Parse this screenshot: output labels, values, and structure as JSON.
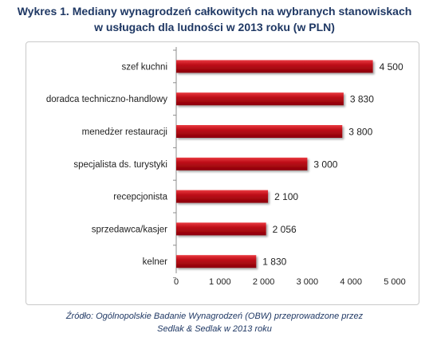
{
  "title_line1": "Wykres 1. Mediany wynagrodzeń całkowitych na wybranych stanowiskach",
  "title_line2": "w usługach dla ludności w 2013 roku (w PLN)",
  "source_line1": "Źródło: Ogólnopolskie Badanie Wynagrodzeń (OBW) przeprowadzone przez",
  "source_line2": "Sedlak & Sedlak w 2013 roku",
  "colors": {
    "bar": "#c0101a",
    "bar_light": "#ea3a40",
    "bar_dark": "#8a0008",
    "title": "#1f3864"
  },
  "chart_data": {
    "type": "bar",
    "orientation": "horizontal",
    "categories": [
      "szef kuchni",
      "doradca techniczno-handlowy",
      "menedżer restauracji",
      "specjalista ds. turystyki",
      "recepcjonista",
      "sprzedawca/kasjer",
      "kelner"
    ],
    "values": [
      4500,
      3830,
      3800,
      3000,
      2100,
      2056,
      1830
    ],
    "value_labels": [
      "4 500",
      "3 830",
      "3 800",
      "3 000",
      "2 100",
      "2 056",
      "1 830"
    ],
    "xlim": [
      0,
      5000
    ],
    "xticks": [
      0,
      1000,
      2000,
      3000,
      4000,
      5000
    ],
    "xtick_labels": [
      "0",
      "1 000",
      "2 000",
      "3 000",
      "4 000",
      "5 000"
    ],
    "grid": false,
    "legend": "none"
  }
}
